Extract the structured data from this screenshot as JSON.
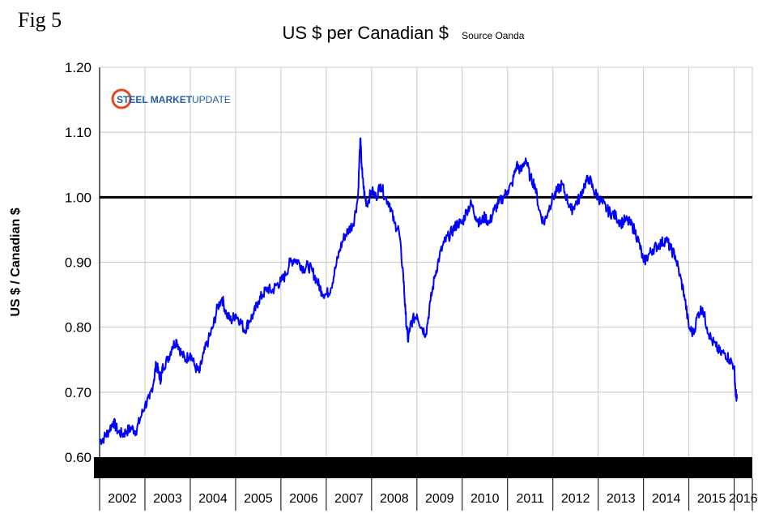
{
  "figure_label": "Fig 5",
  "title": "US $ per Canadian $",
  "source_note": "Source Oanda",
  "logo": {
    "text_steel_market": "STEEL MARKET",
    "text_update": "UPDATE",
    "brand_color": "#1f5fa8",
    "swoosh_color": "#e8461e"
  },
  "colors": {
    "line": "#0000ff",
    "reference": "#000000",
    "grid": "#c8c8c8",
    "band": "#000000"
  },
  "chart_data": {
    "type": "line",
    "title": "US $ per Canadian $",
    "subtitle": "Source Oanda",
    "ylabel": "US $ / Canadian $",
    "xlabel": "",
    "ylim": [
      0.6,
      1.2
    ],
    "xlim": [
      2002.0,
      2016.4
    ],
    "y_ticks": [
      "0.60",
      "0.70",
      "0.80",
      "0.90",
      "1.00",
      "1.10",
      "1.20"
    ],
    "x_categories": [
      "2002",
      "2003",
      "2004",
      "2005",
      "2006",
      "2007",
      "2008",
      "2009",
      "2010",
      "2011",
      "2012",
      "2013",
      "2014",
      "2015",
      "2016"
    ],
    "reference_line": 1.0,
    "grid": true,
    "series": [
      {
        "name": "US $ per Canadian $",
        "x": [
          2002.0,
          2002.1,
          2002.2,
          2002.3,
          2002.4,
          2002.5,
          2002.6,
          2002.7,
          2002.8,
          2002.9,
          2003.0,
          2003.1,
          2003.2,
          2003.25,
          2003.3,
          2003.35,
          2003.4,
          2003.5,
          2003.6,
          2003.7,
          2003.8,
          2003.9,
          2004.0,
          2004.1,
          2004.2,
          2004.3,
          2004.4,
          2004.5,
          2004.6,
          2004.7,
          2004.8,
          2004.9,
          2005.0,
          2005.1,
          2005.2,
          2005.3,
          2005.4,
          2005.5,
          2005.6,
          2005.7,
          2005.8,
          2005.9,
          2006.0,
          2006.1,
          2006.2,
          2006.3,
          2006.4,
          2006.5,
          2006.6,
          2006.7,
          2006.8,
          2006.9,
          2007.0,
          2007.1,
          2007.2,
          2007.3,
          2007.4,
          2007.5,
          2007.6,
          2007.7,
          2007.75,
          2007.8,
          2007.85,
          2007.9,
          2008.0,
          2008.1,
          2008.2,
          2008.3,
          2008.4,
          2008.5,
          2008.6,
          2008.7,
          2008.75,
          2008.8,
          2008.85,
          2008.9,
          2009.0,
          2009.1,
          2009.2,
          2009.3,
          2009.4,
          2009.5,
          2009.6,
          2009.7,
          2009.8,
          2009.9,
          2010.0,
          2010.1,
          2010.2,
          2010.3,
          2010.4,
          2010.5,
          2010.6,
          2010.7,
          2010.8,
          2010.9,
          2011.0,
          2011.1,
          2011.2,
          2011.3,
          2011.4,
          2011.5,
          2011.6,
          2011.7,
          2011.8,
          2011.9,
          2012.0,
          2012.1,
          2012.2,
          2012.3,
          2012.4,
          2012.5,
          2012.6,
          2012.7,
          2012.8,
          2012.9,
          2013.0,
          2013.1,
          2013.2,
          2013.3,
          2013.4,
          2013.5,
          2013.6,
          2013.7,
          2013.8,
          2013.9,
          2014.0,
          2014.1,
          2014.2,
          2014.3,
          2014.4,
          2014.5,
          2014.6,
          2014.7,
          2014.8,
          2014.9,
          2015.0,
          2015.1,
          2015.2,
          2015.3,
          2015.4,
          2015.5,
          2015.6,
          2015.7,
          2015.8,
          2015.9,
          2016.0,
          2016.03,
          2016.06
        ],
        "values": [
          0.625,
          0.63,
          0.64,
          0.655,
          0.64,
          0.635,
          0.64,
          0.645,
          0.64,
          0.66,
          0.68,
          0.69,
          0.72,
          0.745,
          0.73,
          0.72,
          0.74,
          0.75,
          0.77,
          0.78,
          0.76,
          0.75,
          0.76,
          0.74,
          0.73,
          0.76,
          0.78,
          0.8,
          0.83,
          0.845,
          0.82,
          0.81,
          0.82,
          0.81,
          0.795,
          0.81,
          0.82,
          0.84,
          0.85,
          0.86,
          0.855,
          0.865,
          0.87,
          0.88,
          0.9,
          0.905,
          0.9,
          0.89,
          0.895,
          0.885,
          0.87,
          0.855,
          0.85,
          0.86,
          0.89,
          0.92,
          0.94,
          0.95,
          0.96,
          1.0,
          1.09,
          1.03,
          1.0,
          0.99,
          1.01,
          1.0,
          1.02,
          1.0,
          0.99,
          0.96,
          0.95,
          0.88,
          0.82,
          0.78,
          0.8,
          0.81,
          0.82,
          0.8,
          0.79,
          0.84,
          0.88,
          0.91,
          0.93,
          0.94,
          0.95,
          0.96,
          0.96,
          0.98,
          0.99,
          0.97,
          0.96,
          0.97,
          0.96,
          0.98,
          0.99,
          1.0,
          1.01,
          1.02,
          1.05,
          1.04,
          1.06,
          1.03,
          1.02,
          0.98,
          0.96,
          0.98,
          1.0,
          1.01,
          1.02,
          1.0,
          0.98,
          0.99,
          1.0,
          1.02,
          1.03,
          1.01,
          1.0,
          0.99,
          0.98,
          0.975,
          0.97,
          0.96,
          0.965,
          0.96,
          0.95,
          0.93,
          0.9,
          0.91,
          0.92,
          0.925,
          0.93,
          0.935,
          0.92,
          0.91,
          0.88,
          0.85,
          0.8,
          0.79,
          0.82,
          0.83,
          0.8,
          0.78,
          0.77,
          0.76,
          0.76,
          0.75,
          0.74,
          0.7,
          0.69
        ]
      }
    ]
  }
}
